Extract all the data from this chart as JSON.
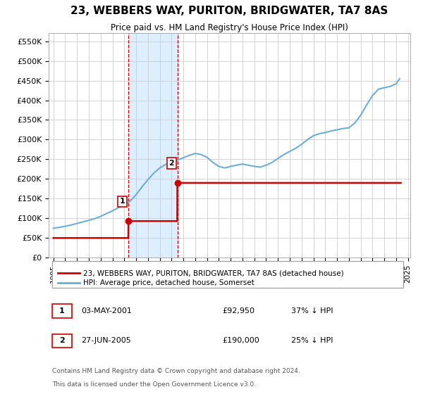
{
  "title": "23, WEBBERS WAY, PURITON, BRIDGWATER, TA7 8AS",
  "subtitle": "Price paid vs. HM Land Registry's House Price Index (HPI)",
  "ylabel_ticks": [
    "£0",
    "£50K",
    "£100K",
    "£150K",
    "£200K",
    "£250K",
    "£300K",
    "£350K",
    "£400K",
    "£450K",
    "£500K",
    "£550K"
  ],
  "ytick_values": [
    0,
    50000,
    100000,
    150000,
    200000,
    250000,
    300000,
    350000,
    400000,
    450000,
    500000,
    550000
  ],
  "ylim": [
    0,
    570000
  ],
  "sale1_x": 2001.35,
  "sale1_price": 92950,
  "sale1_label": "1",
  "sale2_x": 2005.49,
  "sale2_price": 190000,
  "sale2_label": "2",
  "hpi_color": "#6baed6",
  "price_color": "#cc0000",
  "shade_color": "#ddeeff",
  "legend_text1": "23, WEBBERS WAY, PURITON, BRIDGWATER, TA7 8AS (detached house)",
  "legend_text2": "HPI: Average price, detached house, Somerset",
  "table_row1": [
    "1",
    "03-MAY-2001",
    "£92,950",
    "37% ↓ HPI"
  ],
  "table_row2": [
    "2",
    "27-JUN-2005",
    "£190,000",
    "25% ↓ HPI"
  ],
  "footnote1": "Contains HM Land Registry data © Crown copyright and database right 2024.",
  "footnote2": "This data is licensed under the Open Government Licence v3.0.",
  "background_color": "#ffffff",
  "hpi_years": [
    1995,
    1995.5,
    1996,
    1996.5,
    1997,
    1997.5,
    1998,
    1998.5,
    1999,
    1999.5,
    2000,
    2000.5,
    2001,
    2001.5,
    2002,
    2002.5,
    2003,
    2003.5,
    2004,
    2004.5,
    2005,
    2005.5,
    2006,
    2006.5,
    2007,
    2007.5,
    2008,
    2008.5,
    2009,
    2009.5,
    2010,
    2010.5,
    2011,
    2011.5,
    2012,
    2012.5,
    2013,
    2013.5,
    2014,
    2014.5,
    2015,
    2015.5,
    2016,
    2016.5,
    2017,
    2017.5,
    2018,
    2018.5,
    2019,
    2019.5,
    2020,
    2020.5,
    2021,
    2021.5,
    2022,
    2022.5,
    2023,
    2023.5,
    2024,
    2024.3
  ],
  "hpi_values": [
    75000,
    77000,
    80000,
    83000,
    87000,
    91000,
    95000,
    99000,
    105000,
    112000,
    119000,
    127000,
    133000,
    144000,
    160000,
    180000,
    198000,
    215000,
    228000,
    237000,
    242000,
    248000,
    254000,
    260000,
    265000,
    262000,
    255000,
    242000,
    232000,
    228000,
    232000,
    235000,
    238000,
    235000,
    232000,
    230000,
    235000,
    242000,
    252000,
    262000,
    270000,
    278000,
    288000,
    300000,
    310000,
    315000,
    318000,
    322000,
    325000,
    328000,
    330000,
    342000,
    362000,
    388000,
    412000,
    428000,
    432000,
    435000,
    442000,
    455000
  ],
  "price_x": [
    1995.0,
    2001.34,
    2001.35,
    2005.48,
    2005.49,
    2024.4
  ],
  "price_y": [
    50000,
    50000,
    92950,
    92950,
    190000,
    190000
  ]
}
